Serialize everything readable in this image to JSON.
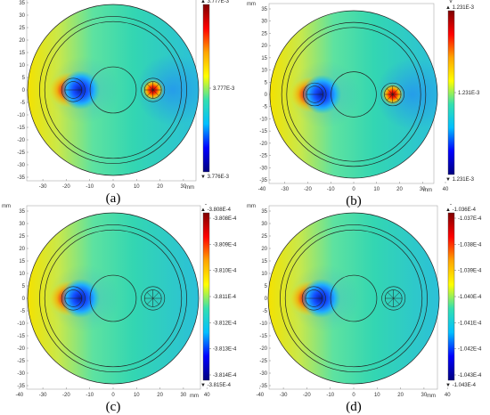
{
  "panels": [
    {
      "id": "a",
      "label": "(a)",
      "unit": "V",
      "axis_unit_y": "mm",
      "axis_unit_x": "mm",
      "x_ticks": [
        "-30",
        "-20",
        "-10",
        "0",
        "10",
        "20",
        "30"
      ],
      "y_ticks": [
        "35",
        "30",
        "25",
        "20",
        "15",
        "10",
        "5",
        "0",
        "-5",
        "-10",
        "-15",
        "-20",
        "-25",
        "-30",
        "-35"
      ],
      "colorbar_top": "▲ 3.777E-3",
      "colorbar_bottom": "▼ 3.776E-3",
      "colorbar_ticks": [
        "3.777E-3"
      ],
      "right_conductor": "hot"
    },
    {
      "id": "b",
      "label": "(b)",
      "unit": "V",
      "axis_unit_y": "mm",
      "axis_unit_x": "mm",
      "x_ticks": [
        "-40",
        "-30",
        "-20",
        "-10",
        "0",
        "10",
        "20",
        "30",
        "40"
      ],
      "y_ticks": [
        "35",
        "30",
        "25",
        "20",
        "15",
        "10",
        "5",
        "0",
        "-5",
        "-10",
        "-15",
        "-20",
        "-25",
        "-30",
        "-35"
      ],
      "colorbar_top": "▲ 1.231E-3",
      "colorbar_bottom": "▼ 1.231E-3",
      "colorbar_ticks": [
        "1.231E-3"
      ],
      "right_conductor": "hot"
    },
    {
      "id": "c",
      "label": "(c)",
      "unit": "V",
      "axis_unit_y": "mm",
      "axis_unit_x": "mm",
      "x_ticks": [
        "-40",
        "-30",
        "-20",
        "-10",
        "0",
        "10",
        "20",
        "30",
        "40"
      ],
      "y_ticks": [
        "35",
        "30",
        "25",
        "20",
        "15",
        "10",
        "5",
        "0",
        "-5",
        "-10",
        "-15",
        "-20",
        "-25",
        "-30",
        "-35"
      ],
      "colorbar_top": "▲ -3.808E-4",
      "colorbar_bottom": "▼ -3.815E-4",
      "colorbar_ticks": [
        "-3.808E-4",
        "-3.809E-4",
        "-3.810E-4",
        "-3.811E-4",
        "-3.812E-4",
        "-3.813E-4",
        "-3.814E-4"
      ],
      "right_conductor": "none"
    },
    {
      "id": "d",
      "label": "(d)",
      "unit": "V",
      "axis_unit_y": "mm",
      "axis_unit_x": "mm",
      "x_ticks": [
        "-40",
        "-30",
        "-20",
        "-10",
        "0",
        "10",
        "20",
        "30",
        "40"
      ],
      "y_ticks": [
        "35",
        "30",
        "25",
        "20",
        "15",
        "10",
        "5",
        "0",
        "-5",
        "-10",
        "-15",
        "-20",
        "-25",
        "-30",
        "-35"
      ],
      "colorbar_top": "▲ -1.036E-4",
      "colorbar_bottom": "▼ -1.043E-4",
      "colorbar_ticks": [
        "-1.037E-4",
        "-1.038E-4",
        "-1.039E-4",
        "-1.040E-4",
        "-1.041E-4",
        "-1.042E-4",
        "-1.043E-4"
      ],
      "right_conductor": "none"
    }
  ],
  "colors": {
    "field_base": "#33d6a6",
    "hot": "#c80000",
    "cold": "#0000a0",
    "gradient_stops": [
      "#7f0000",
      "#ff0000",
      "#ffa500",
      "#ffff00",
      "#33e0b0",
      "#00bfff",
      "#0000ff",
      "#00007f"
    ]
  }
}
